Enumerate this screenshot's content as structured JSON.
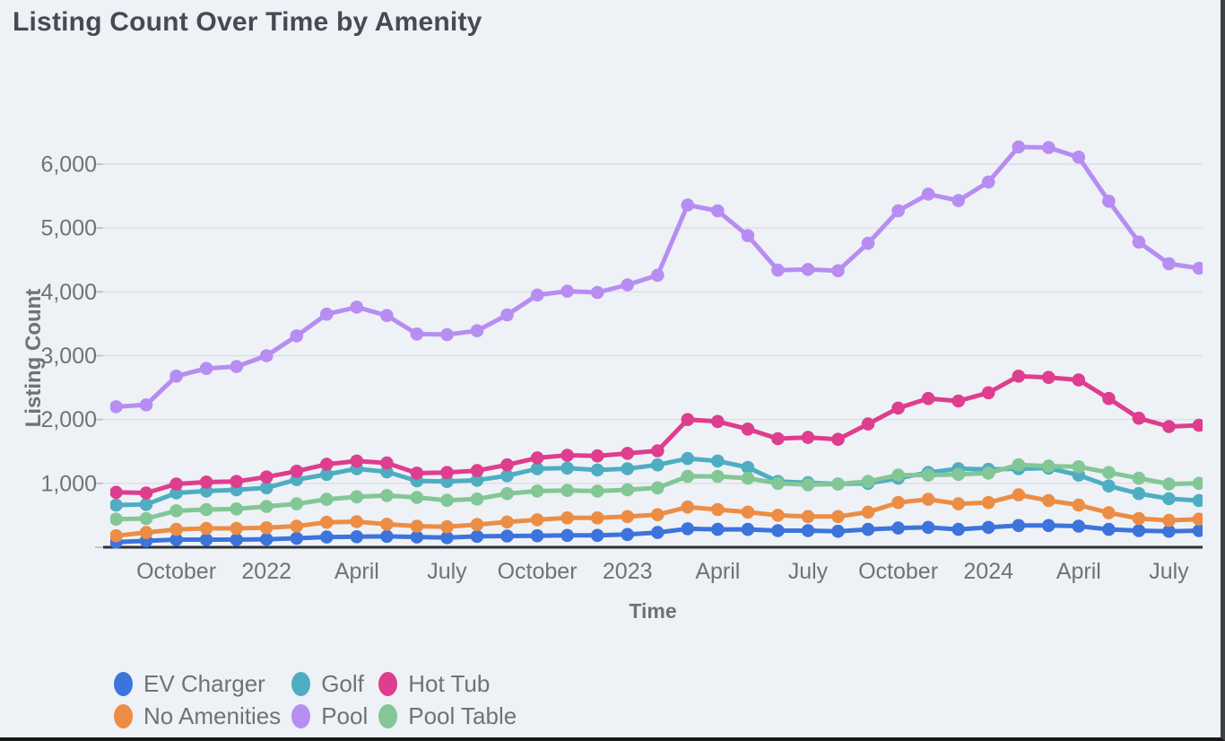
{
  "title": "Listing Count Over Time by Amenity",
  "theme": {
    "background": "#eef1f6",
    "title_color": "#454b52",
    "axis_text_color": "#6e7378",
    "gridline_color": "#d8dadf",
    "tick_color": "#c2c6cb",
    "baseline_color": "#2f3337"
  },
  "chart_data": {
    "type": "line",
    "title": "Listing Count Over Time by Amenity",
    "xlabel": "Time",
    "ylabel": "Listing Count",
    "ylim": [
      0,
      6000
    ],
    "grid": "horizontal",
    "legend_position": "bottom-left",
    "x_axis": {
      "label": "Time",
      "tick_labels": [
        "October",
        "2022",
        "April",
        "July",
        "October",
        "2023",
        "April",
        "July",
        "October",
        "2024",
        "April",
        "July"
      ],
      "tick_month_indices": [
        2,
        5,
        8,
        11,
        14,
        17,
        20,
        23,
        26,
        29,
        32,
        35
      ]
    },
    "y_axis": {
      "label": "Listing Count",
      "tick_values": [
        1000,
        2000,
        3000,
        4000,
        5000,
        6000
      ],
      "tick_labels": [
        "1,000",
        "2,000",
        "3,000",
        "4,000",
        "5,000",
        "6,000"
      ]
    },
    "months": [
      "Aug 2021",
      "Sep 2021",
      "Oct 2021",
      "Nov 2021",
      "Dec 2021",
      "Jan 2022",
      "Feb 2022",
      "Mar 2022",
      "Apr 2022",
      "May 2022",
      "Jun 2022",
      "Jul 2022",
      "Aug 2022",
      "Sep 2022",
      "Oct 2022",
      "Nov 2022",
      "Dec 2022",
      "Jan 2023",
      "Feb 2023",
      "Mar 2023",
      "Apr 2023",
      "May 2023",
      "Jun 2023",
      "Jul 2023",
      "Aug 2023",
      "Sep 2023",
      "Oct 2023",
      "Nov 2023",
      "Dec 2023",
      "Jan 2024",
      "Feb 2024",
      "Mar 2024",
      "Apr 2024",
      "May 2024",
      "Jun 2024",
      "Jul 2024",
      "Aug 2024"
    ],
    "series": [
      {
        "name": "EV Charger",
        "color": "#3d74db",
        "values": [
          80,
          100,
          120,
          120,
          120,
          125,
          140,
          160,
          165,
          170,
          160,
          150,
          170,
          175,
          180,
          185,
          185,
          200,
          230,
          290,
          280,
          280,
          260,
          260,
          250,
          280,
          300,
          310,
          280,
          310,
          340,
          340,
          330,
          280,
          260,
          250,
          260
        ]
      },
      {
        "name": "Golf",
        "color": "#4fadc2",
        "values": [
          660,
          670,
          850,
          880,
          900,
          930,
          1060,
          1140,
          1230,
          1180,
          1040,
          1030,
          1050,
          1120,
          1230,
          1240,
          1210,
          1230,
          1290,
          1390,
          1350,
          1250,
          1030,
          1010,
          990,
          1000,
          1080,
          1170,
          1230,
          1220,
          1230,
          1240,
          1130,
          960,
          840,
          760,
          730
        ]
      },
      {
        "name": "Hot Tub",
        "color": "#df3d8d",
        "values": [
          860,
          850,
          990,
          1020,
          1030,
          1100,
          1190,
          1300,
          1350,
          1320,
          1160,
          1170,
          1200,
          1290,
          1400,
          1440,
          1430,
          1470,
          1510,
          2000,
          1970,
          1850,
          1700,
          1720,
          1690,
          1930,
          2180,
          2330,
          2290,
          2420,
          2680,
          2660,
          2620,
          2330,
          2020,
          1890,
          1910
        ]
      },
      {
        "name": "No Amenities",
        "color": "#ec8d45",
        "values": [
          180,
          230,
          280,
          295,
          295,
          305,
          330,
          390,
          400,
          360,
          330,
          320,
          355,
          395,
          430,
          460,
          460,
          480,
          510,
          630,
          590,
          550,
          500,
          480,
          480,
          550,
          700,
          750,
          680,
          700,
          820,
          730,
          660,
          540,
          450,
          420,
          440
        ]
      },
      {
        "name": "Pool",
        "color": "#b78df2",
        "values": [
          2200,
          2230,
          2680,
          2800,
          2830,
          3000,
          3310,
          3650,
          3760,
          3630,
          3340,
          3330,
          3390,
          3640,
          3950,
          4010,
          3990,
          4110,
          4260,
          5360,
          5270,
          4880,
          4340,
          4350,
          4330,
          4760,
          5270,
          5530,
          5430,
          5720,
          6270,
          6260,
          6110,
          5420,
          4780,
          4440,
          4370
        ]
      },
      {
        "name": "Pool Table",
        "color": "#82c795",
        "values": [
          440,
          450,
          570,
          590,
          600,
          640,
          680,
          750,
          790,
          810,
          780,
          735,
          755,
          840,
          880,
          890,
          880,
          900,
          930,
          1110,
          1110,
          1080,
          1000,
          980,
          990,
          1030,
          1130,
          1130,
          1140,
          1160,
          1290,
          1270,
          1260,
          1170,
          1080,
          990,
          1000
        ]
      }
    ]
  }
}
